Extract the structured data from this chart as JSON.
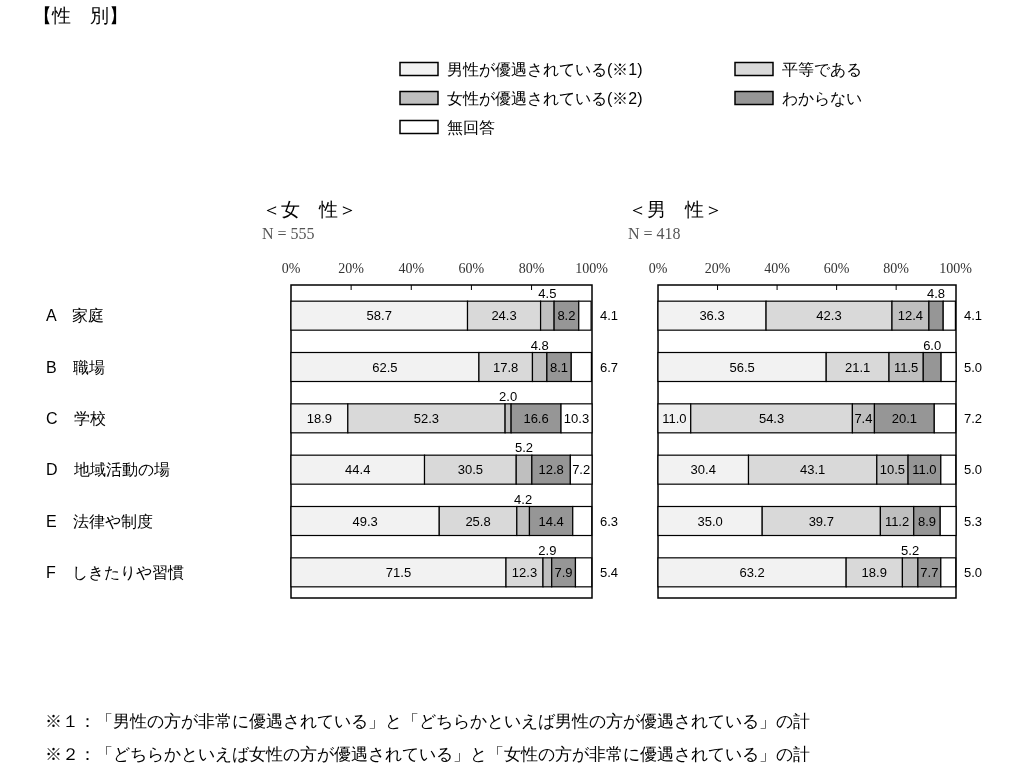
{
  "chart_data": [
    {
      "type": "bar",
      "orientation": "horizontal",
      "stacked": true,
      "title": "＜女　性＞",
      "subtitle": "N = 555",
      "categories": [
        "A　家庭",
        "B　職場",
        "C　学校",
        "D　地域活動の場",
        "E　法律や制度",
        "F　しきたりや習慣"
      ],
      "series": [
        {
          "name": "男性が優遇されている(※1)",
          "color": "#f2f2f2",
          "values": [
            58.7,
            62.5,
            18.9,
            44.4,
            49.3,
            71.5
          ],
          "value_labels": [
            "58.7",
            "62.5",
            "18.9",
            "44.4",
            "49.3",
            "71.5"
          ]
        },
        {
          "name": "平等である",
          "color": "#d9d9d9",
          "values": [
            24.3,
            17.8,
            52.3,
            30.5,
            25.8,
            12.3
          ],
          "value_labels": [
            "24.3",
            "17.8",
            "52.3",
            "30.5",
            "25.8",
            "12.3"
          ]
        },
        {
          "name": "女性が優遇されている(※2)",
          "color": "#bfbfbf",
          "values": [
            4.5,
            4.8,
            2.0,
            5.2,
            4.2,
            2.9
          ],
          "value_labels": [
            "4.5",
            "4.8",
            "2.0",
            "5.2",
            "4.2",
            "2.9"
          ]
        },
        {
          "name": "わからない",
          "color": "#969696",
          "values": [
            8.2,
            8.1,
            16.6,
            12.8,
            14.4,
            7.9
          ],
          "value_labels": [
            "8.2",
            "8.1",
            "16.6",
            "12.8",
            "14.4",
            "7.9"
          ]
        },
        {
          "name": "無回答",
          "color": "#ffffff",
          "values": [
            4.1,
            6.7,
            10.3,
            7.2,
            6.3,
            5.4
          ],
          "value_labels": [
            "4.1",
            "6.7",
            "10.3",
            "7.2",
            "6.3",
            "5.4"
          ]
        }
      ],
      "xlim": [
        0,
        100.1
      ],
      "xticks": [
        {
          "value": 0,
          "label": "0%"
        },
        {
          "value": 20,
          "label": "20%"
        },
        {
          "value": 40,
          "label": "40%"
        },
        {
          "value": 60,
          "label": "60%"
        },
        {
          "value": 80,
          "label": "80%"
        },
        {
          "value": 100,
          "label": "100%"
        }
      ],
      "legend": "top",
      "annotations": [
        "【性　別】",
        "※１：「男性の方が非常に優遇されている」と「どちらかといえば男性の方が優遇されている」の計",
        "※２：「どちらかといえば女性の方が優遇されている」と「女性の方が非常に優遇されている」の計"
      ]
    },
    {
      "type": "bar",
      "orientation": "horizontal",
      "stacked": true,
      "title": "＜男　性＞",
      "subtitle": "N = 418",
      "categories": [
        null,
        null,
        null,
        null,
        null,
        null
      ],
      "series": [
        {
          "color": "#f2f2f2",
          "values": [
            36.3,
            56.5,
            11.0,
            30.4,
            35.0,
            63.2
          ],
          "value_labels": [
            "36.3",
            "56.5",
            "11.0",
            "30.4",
            "35.0",
            "63.2"
          ]
        },
        {
          "color": "#d9d9d9",
          "values": [
            42.3,
            21.1,
            54.3,
            43.1,
            39.7,
            18.9
          ],
          "value_labels": [
            "42.3",
            "21.1",
            "54.3",
            "43.1",
            "39.7",
            "18.9"
          ]
        },
        {
          "color": "#bfbfbf",
          "values": [
            12.4,
            11.5,
            7.4,
            10.5,
            11.2,
            5.2
          ],
          "value_labels": [
            "12.4",
            "11.5",
            "7.4",
            "10.5",
            "11.2",
            "5.2"
          ]
        },
        {
          "color": "#969696",
          "values": [
            4.8,
            6.0,
            20.1,
            11.0,
            8.9,
            7.7
          ],
          "value_labels": [
            "4.8",
            "6.0",
            "20.1",
            "11.0",
            "8.9",
            "7.7"
          ]
        },
        {
          "color": "#ffffff",
          "values": [
            4.1,
            5.0,
            7.2,
            5.0,
            5.3,
            5.0
          ],
          "value_labels": [
            "4.1",
            "5.0",
            "7.2",
            "5.0",
            "5.3",
            "5.0"
          ]
        }
      ],
      "xlim": [
        0,
        100.1
      ],
      "xticks": [
        {
          "value": 0,
          "label": "0%"
        },
        {
          "value": 20,
          "label": "20%"
        },
        {
          "value": 40,
          "label": "40%"
        },
        {
          "value": 60,
          "label": "60%"
        },
        {
          "value": 80,
          "label": "80%"
        },
        {
          "value": 100,
          "label": "100%"
        }
      ],
      "tick_labels": "x"
    }
  ]
}
